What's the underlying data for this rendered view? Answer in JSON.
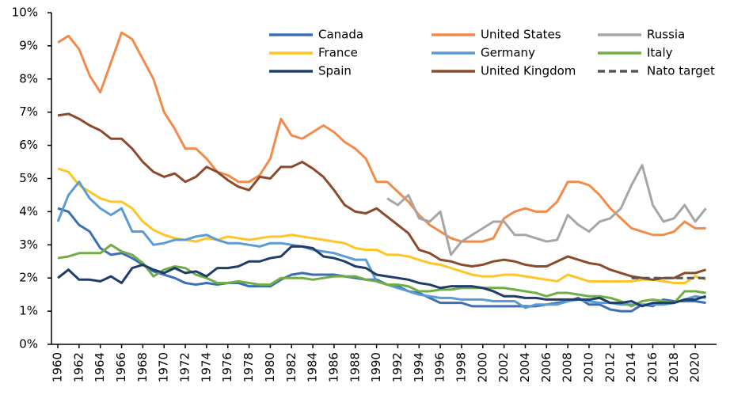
{
  "chart_data": {
    "type": "line",
    "x": [
      1960,
      1961,
      1962,
      1963,
      1964,
      1965,
      1966,
      1967,
      1968,
      1969,
      1970,
      1971,
      1972,
      1973,
      1974,
      1975,
      1976,
      1977,
      1978,
      1979,
      1980,
      1981,
      1982,
      1983,
      1984,
      1985,
      1986,
      1987,
      1988,
      1989,
      1990,
      1991,
      1992,
      1993,
      1994,
      1995,
      1996,
      1997,
      1998,
      1999,
      2000,
      2001,
      2002,
      2003,
      2004,
      2005,
      2006,
      2007,
      2008,
      2009,
      2010,
      2011,
      2012,
      2013,
      2014,
      2015,
      2016,
      2017,
      2018,
      2019,
      2020,
      2021
    ],
    "xlim": [
      1959.4,
      2022
    ],
    "xticks": [
      1960,
      1962,
      1964,
      1966,
      1968,
      1970,
      1972,
      1974,
      1976,
      1978,
      1980,
      1982,
      1984,
      1986,
      1988,
      1990,
      1992,
      1994,
      1996,
      1998,
      2000,
      2002,
      2004,
      2006,
      2008,
      2010,
      2012,
      2014,
      2016,
      2018,
      2020
    ],
    "ylim": [
      0,
      10
    ],
    "yticks": [
      {
        "value": 0,
        "label": "0%"
      },
      {
        "value": 1,
        "label": "1%"
      },
      {
        "value": 2,
        "label": "2%"
      },
      {
        "value": 3,
        "label": "3%"
      },
      {
        "value": 4,
        "label": "4%"
      },
      {
        "value": 5,
        "label": "5%"
      },
      {
        "value": 6,
        "label": "6%"
      },
      {
        "value": 7,
        "label": "7%"
      },
      {
        "value": 8,
        "label": "8%"
      },
      {
        "value": 9,
        "label": "9%"
      },
      {
        "value": 10,
        "label": "10%"
      }
    ],
    "series": [
      {
        "name": "Canada",
        "color": "#3b6eb4",
        "values": [
          4.1,
          4.0,
          3.6,
          3.4,
          2.9,
          2.7,
          2.75,
          2.6,
          2.4,
          2.2,
          2.1,
          2.0,
          1.85,
          1.8,
          1.85,
          1.8,
          1.85,
          1.85,
          1.75,
          1.75,
          1.75,
          1.95,
          2.1,
          2.15,
          2.1,
          2.1,
          2.1,
          2.05,
          2.0,
          1.95,
          1.95,
          1.8,
          1.75,
          1.6,
          1.55,
          1.4,
          1.25,
          1.25,
          1.25,
          1.15,
          1.15,
          1.15,
          1.15,
          1.15,
          1.15,
          1.15,
          1.2,
          1.25,
          1.3,
          1.4,
          1.2,
          1.2,
          1.05,
          1.0,
          1.0,
          1.2,
          1.15,
          1.35,
          1.3,
          1.3,
          1.3,
          1.25
        ]
      },
      {
        "name": "United States",
        "color": "#f28a4a",
        "values": [
          9.1,
          9.3,
          8.9,
          8.1,
          7.6,
          8.5,
          9.4,
          9.2,
          8.6,
          8.0,
          7.0,
          6.5,
          5.9,
          5.9,
          5.6,
          5.2,
          5.1,
          4.9,
          4.9,
          5.1,
          5.6,
          6.8,
          6.3,
          6.2,
          6.4,
          6.6,
          6.4,
          6.1,
          5.9,
          5.6,
          4.9,
          4.9,
          4.6,
          4.3,
          3.9,
          3.6,
          3.4,
          3.2,
          3.1,
          3.1,
          3.1,
          3.2,
          3.8,
          4.0,
          4.1,
          4.0,
          4.0,
          4.3,
          4.9,
          4.9,
          4.8,
          4.5,
          4.1,
          3.8,
          3.5,
          3.4,
          3.3,
          3.3,
          3.4,
          3.7,
          3.5,
          3.5
        ]
      },
      {
        "name": "Russia",
        "color": "#a6a6a6",
        "values": [
          null,
          null,
          null,
          null,
          null,
          null,
          null,
          null,
          null,
          null,
          null,
          null,
          null,
          null,
          null,
          null,
          null,
          null,
          null,
          null,
          null,
          null,
          null,
          null,
          null,
          null,
          null,
          null,
          null,
          null,
          null,
          4.4,
          4.2,
          4.5,
          3.8,
          3.7,
          4.0,
          2.7,
          3.1,
          3.3,
          3.5,
          3.7,
          3.7,
          3.3,
          3.3,
          3.2,
          3.1,
          3.15,
          3.9,
          3.6,
          3.4,
          3.7,
          3.8,
          4.1,
          4.8,
          5.4,
          4.2,
          3.7,
          3.8,
          4.2,
          3.7,
          4.1
        ]
      },
      {
        "name": "France",
        "color": "#ffc425",
        "values": [
          5.3,
          5.2,
          4.8,
          4.6,
          4.4,
          4.3,
          4.3,
          4.1,
          3.7,
          3.45,
          3.3,
          3.2,
          3.15,
          3.1,
          3.2,
          3.15,
          3.25,
          3.2,
          3.15,
          3.2,
          3.25,
          3.25,
          3.3,
          3.25,
          3.2,
          3.15,
          3.1,
          3.05,
          2.9,
          2.85,
          2.85,
          2.7,
          2.7,
          2.65,
          2.55,
          2.45,
          2.4,
          2.3,
          2.2,
          2.1,
          2.05,
          2.05,
          2.1,
          2.1,
          2.05,
          2.0,
          1.95,
          1.9,
          2.1,
          2.0,
          1.9,
          1.9,
          1.9,
          1.9,
          1.9,
          1.95,
          1.95,
          1.9,
          1.85,
          1.85,
          2.05,
          1.95
        ]
      },
      {
        "name": "Germany",
        "color": "#5b9bd5",
        "values": [
          3.7,
          4.5,
          4.9,
          4.4,
          4.1,
          3.9,
          4.1,
          3.4,
          3.4,
          3.0,
          3.05,
          3.15,
          3.15,
          3.25,
          3.3,
          3.15,
          3.05,
          3.05,
          3.0,
          2.95,
          3.05,
          3.05,
          3.0,
          2.95,
          2.85,
          2.8,
          2.75,
          2.65,
          2.55,
          2.55,
          1.9,
          1.8,
          1.7,
          1.6,
          1.5,
          1.45,
          1.4,
          1.4,
          1.35,
          1.35,
          1.35,
          1.3,
          1.3,
          1.3,
          1.1,
          1.2,
          1.2,
          1.2,
          1.3,
          1.35,
          1.3,
          1.25,
          1.25,
          1.2,
          1.2,
          1.2,
          1.2,
          1.2,
          1.25,
          1.35,
          1.45,
          1.4
        ]
      },
      {
        "name": "Italy",
        "color": "#70ad47",
        "values": [
          2.6,
          2.65,
          2.75,
          2.75,
          2.75,
          3.0,
          2.8,
          2.7,
          2.45,
          2.05,
          2.25,
          2.35,
          2.3,
          2.1,
          2.0,
          1.85,
          1.85,
          1.9,
          1.85,
          1.8,
          1.8,
          2.0,
          2.0,
          2.0,
          1.95,
          2.0,
          2.05,
          2.05,
          2.05,
          1.95,
          1.9,
          1.8,
          1.8,
          1.75,
          1.6,
          1.6,
          1.65,
          1.65,
          1.7,
          1.7,
          1.7,
          1.7,
          1.7,
          1.65,
          1.6,
          1.55,
          1.45,
          1.55,
          1.55,
          1.5,
          1.45,
          1.45,
          1.4,
          1.3,
          1.15,
          1.3,
          1.35,
          1.3,
          1.25,
          1.6,
          1.6,
          1.55
        ]
      },
      {
        "name": "Spain",
        "color": "#1f3d6b",
        "values": [
          2.0,
          2.25,
          1.95,
          1.95,
          1.9,
          2.05,
          1.85,
          2.3,
          2.4,
          2.25,
          2.15,
          2.3,
          2.15,
          2.2,
          2.05,
          2.3,
          2.3,
          2.35,
          2.5,
          2.5,
          2.6,
          2.65,
          2.95,
          2.95,
          2.9,
          2.65,
          2.6,
          2.5,
          2.35,
          2.3,
          2.1,
          2.05,
          2.0,
          1.95,
          1.85,
          1.8,
          1.7,
          1.75,
          1.75,
          1.75,
          1.7,
          1.6,
          1.45,
          1.45,
          1.4,
          1.4,
          1.35,
          1.35,
          1.35,
          1.35,
          1.35,
          1.4,
          1.25,
          1.25,
          1.3,
          1.15,
          1.25,
          1.25,
          1.25,
          1.35,
          1.35,
          1.45
        ]
      },
      {
        "name": "United Kingdom",
        "color": "#8b4a2b",
        "values": [
          6.9,
          6.95,
          6.8,
          6.6,
          6.45,
          6.2,
          6.2,
          5.9,
          5.5,
          5.2,
          5.05,
          5.15,
          4.9,
          5.05,
          5.35,
          5.2,
          4.95,
          4.75,
          4.65,
          5.05,
          5.0,
          5.35,
          5.35,
          5.5,
          5.3,
          5.05,
          4.65,
          4.2,
          4.0,
          3.95,
          4.1,
          3.85,
          3.6,
          3.35,
          2.85,
          2.75,
          2.55,
          2.5,
          2.4,
          2.35,
          2.4,
          2.5,
          2.55,
          2.5,
          2.4,
          2.35,
          2.35,
          2.5,
          2.65,
          2.55,
          2.45,
          2.4,
          2.25,
          2.15,
          2.05,
          2.0,
          1.95,
          2.0,
          2.0,
          2.15,
          2.15,
          2.25
        ]
      },
      {
        "name": "Nato target",
        "color": "#555555",
        "dashed": true,
        "values": [
          null,
          null,
          null,
          null,
          null,
          null,
          null,
          null,
          null,
          null,
          null,
          null,
          null,
          null,
          null,
          null,
          null,
          null,
          null,
          null,
          null,
          null,
          null,
          null,
          null,
          null,
          null,
          null,
          null,
          null,
          null,
          null,
          null,
          null,
          null,
          null,
          null,
          null,
          null,
          null,
          null,
          null,
          null,
          null,
          null,
          null,
          null,
          null,
          null,
          null,
          null,
          null,
          null,
          null,
          2,
          2,
          2,
          2,
          2,
          2,
          2,
          2
        ]
      }
    ]
  }
}
